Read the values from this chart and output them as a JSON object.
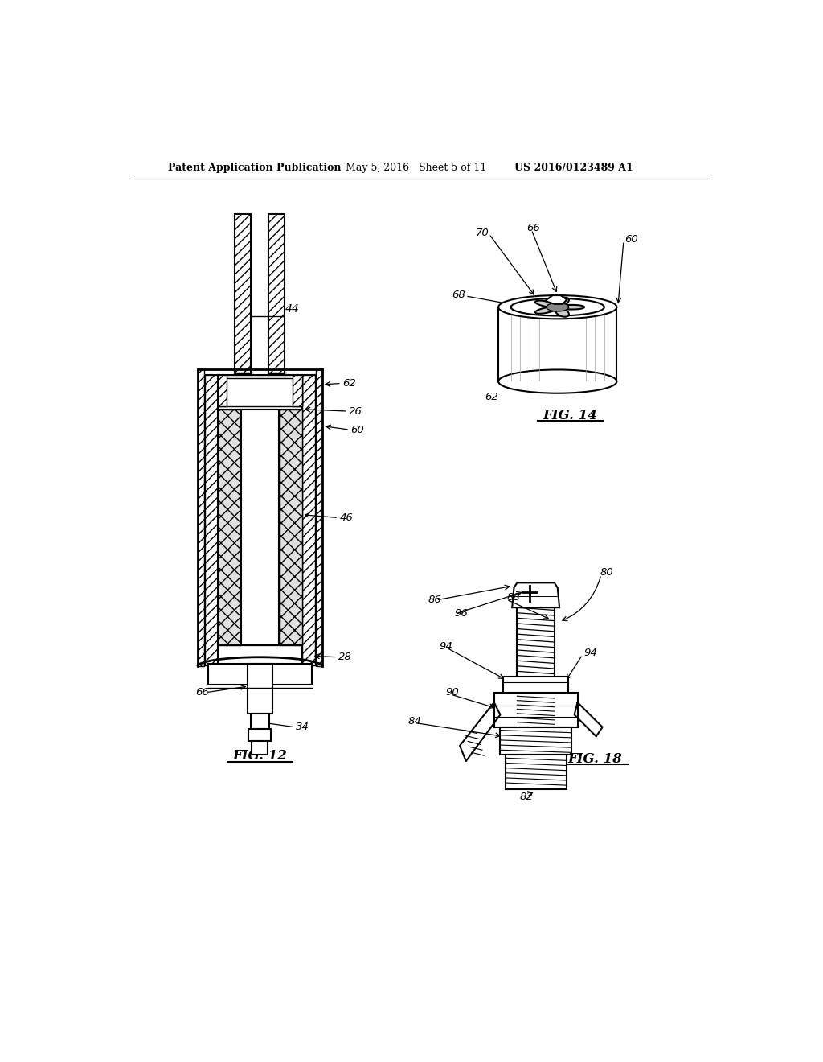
{
  "bg_color": "#ffffff",
  "header_text": "Patent Application Publication",
  "header_date": "May 5, 2016   Sheet 5 of 11",
  "header_patent": "US 2016/0123489 A1",
  "fig12_label": "FIG. 12",
  "fig14_label": "FIG. 14",
  "fig18_label": "FIG. 18",
  "line_color": "#000000"
}
